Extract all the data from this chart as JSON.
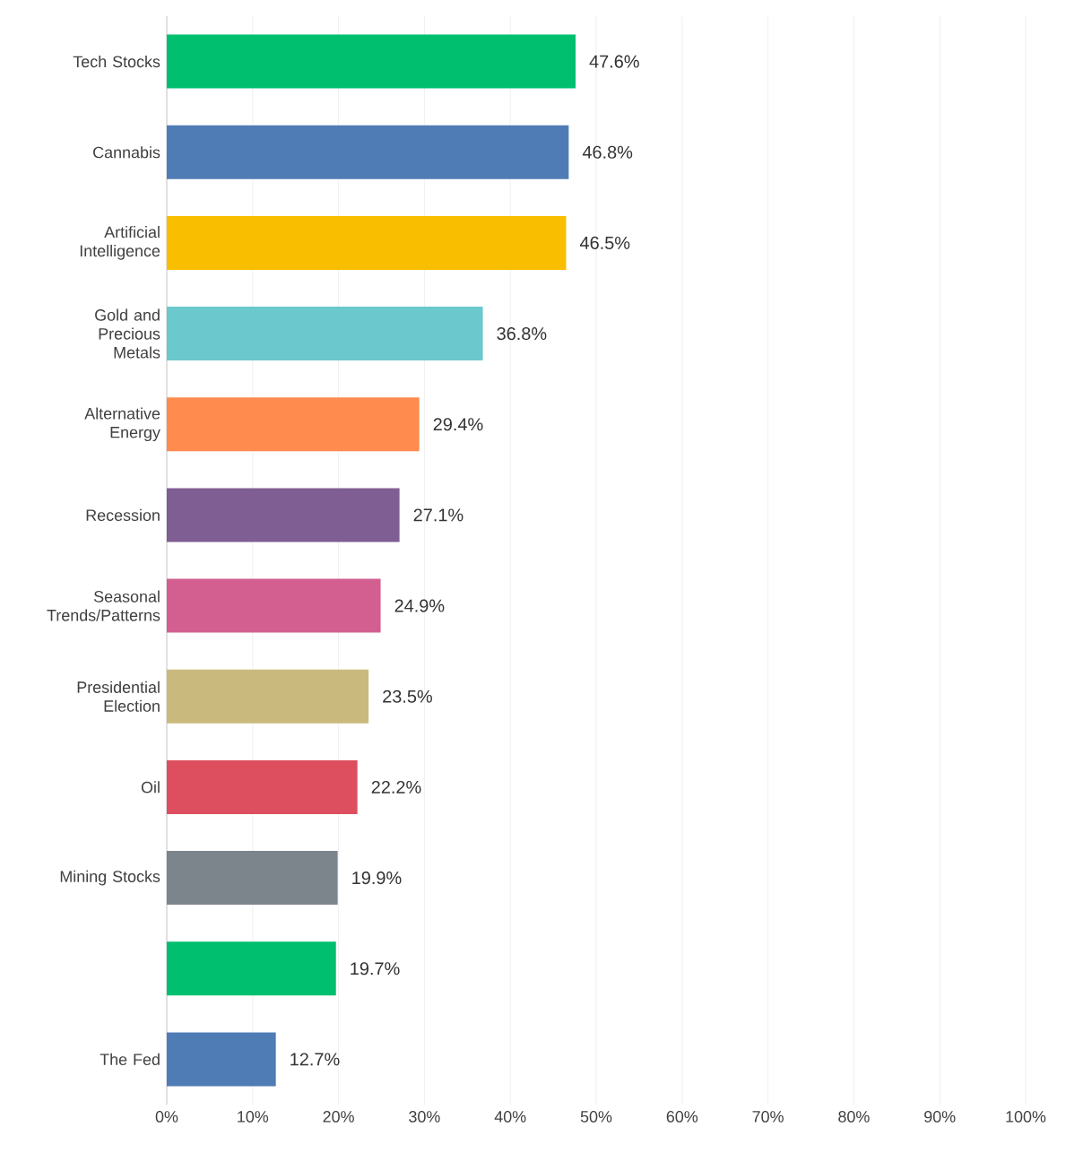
{
  "chart_data": {
    "type": "bar",
    "orientation": "horizontal",
    "categories": [
      "Tech Stocks",
      "Cannabis",
      "Artificial Intelligence",
      "Gold and Precious Metals",
      "Alternative Energy",
      "Recession",
      "Seasonal Trends/Patterns",
      "Presidential Election",
      "Oil",
      "Mining Stocks",
      null,
      "The Fed"
    ],
    "values": [
      47.6,
      46.8,
      46.5,
      36.8,
      29.4,
      27.1,
      24.9,
      23.5,
      22.2,
      19.9,
      19.7,
      12.7
    ],
    "value_labels": [
      "47.6%",
      "46.8%",
      "46.5%",
      "36.8%",
      "29.4%",
      "27.1%",
      "24.9%",
      "23.5%",
      "22.2%",
      "19.9%",
      "19.7%",
      "12.7%"
    ],
    "colors": [
      "#00bf6f",
      "#507cb6",
      "#f9be00",
      "#6bc8cd",
      "#ff8b4f",
      "#7f5e94",
      "#d25f90",
      "#c9b97d",
      "#dd4f5f",
      "#7c858b",
      "#00bf6f",
      "#507cb6"
    ],
    "xlim": [
      0,
      100
    ],
    "xticks": [
      {
        "value": 0,
        "label": "0%"
      },
      {
        "value": 10,
        "label": "10%"
      },
      {
        "value": 20,
        "label": "20%"
      },
      {
        "value": 30,
        "label": "30%"
      },
      {
        "value": 40,
        "label": "40%"
      },
      {
        "value": 50,
        "label": "50%"
      },
      {
        "value": 60,
        "label": "60%"
      },
      {
        "value": 70,
        "label": "70%"
      },
      {
        "value": 80,
        "label": "80%"
      },
      {
        "value": 90,
        "label": "90%"
      },
      {
        "value": 100,
        "label": "100%"
      }
    ],
    "grid": "x"
  }
}
